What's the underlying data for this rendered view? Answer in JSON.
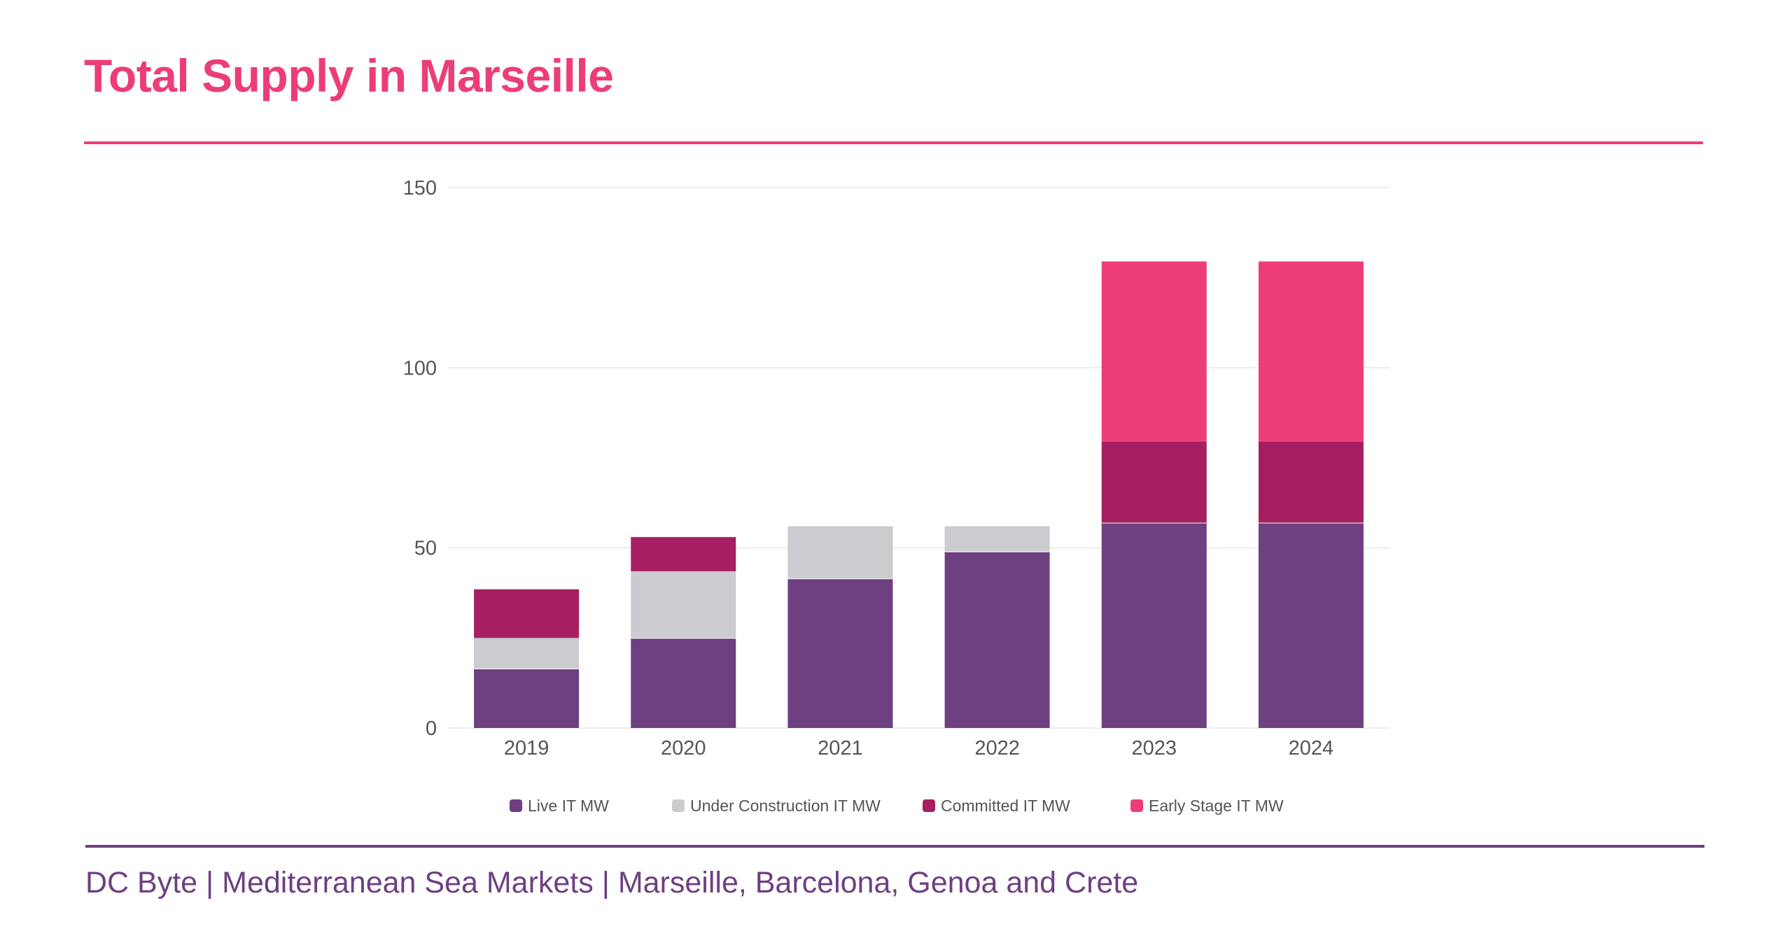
{
  "page": {
    "title": "Total Supply in Marseille",
    "footer": "DC Byte | Mediterranean Sea Markets | Marseille, Barcelona, Genoa and Crete"
  },
  "chart_data": {
    "type": "bar",
    "stacked": true,
    "title": "Total Supply in Marseille",
    "xlabel": "",
    "ylabel": "",
    "ylim": [
      0,
      150
    ],
    "yticks": [
      0,
      50,
      100,
      150
    ],
    "grid": true,
    "legend_position": "bottom",
    "categories": [
      "2019",
      "2020",
      "2021",
      "2022",
      "2023",
      "2024"
    ],
    "series": [
      {
        "name": "Live IT MW",
        "color": "#6e3f81",
        "values": [
          16.5,
          25,
          41.5,
          49,
          57,
          57
        ]
      },
      {
        "name": "Under Construction IT MW",
        "color": "#cbcbd0",
        "values": [
          8.5,
          18.5,
          14.5,
          7,
          0,
          0
        ]
      },
      {
        "name": "Committed IT MW",
        "color": "#a61f62",
        "values": [
          13.5,
          9.5,
          0,
          0,
          22.5,
          22.5
        ]
      },
      {
        "name": "Early Stage IT MW",
        "color": "#ec3d79",
        "values": [
          0,
          0,
          0,
          0,
          50,
          50
        ]
      }
    ]
  }
}
